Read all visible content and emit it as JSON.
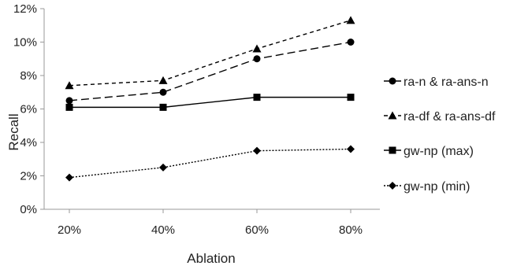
{
  "chart_data": {
    "type": "line",
    "title": "",
    "xlabel": "Ablation",
    "ylabel": "Recall",
    "categories": [
      "20%",
      "40%",
      "60%",
      "80%"
    ],
    "ylim": [
      0,
      12
    ],
    "yticks": [
      0,
      2,
      4,
      6,
      8,
      10,
      12
    ],
    "ytick_labels": [
      "0%",
      "2%",
      "4%",
      "6%",
      "8%",
      "10%",
      "12%"
    ],
    "grid": false,
    "legend_position": "right",
    "series": [
      {
        "name": "ra-n & ra-ans-n",
        "values": [
          6.5,
          7.0,
          9.0,
          10.0
        ],
        "marker": "circle",
        "line_style": "long-dash",
        "color": "#000000"
      },
      {
        "name": "ra-df & ra-ans-df",
        "values": [
          7.4,
          7.7,
          9.6,
          11.3
        ],
        "marker": "triangle",
        "line_style": "short-dash",
        "color": "#000000"
      },
      {
        "name": "gw-np (max)",
        "values": [
          6.1,
          6.1,
          6.7,
          6.7
        ],
        "marker": "square",
        "line_style": "solid",
        "color": "#000000"
      },
      {
        "name": "gw-np (min)",
        "values": [
          1.9,
          2.5,
          3.5,
          3.6
        ],
        "marker": "diamond",
        "line_style": "dotted",
        "color": "#000000"
      }
    ]
  }
}
